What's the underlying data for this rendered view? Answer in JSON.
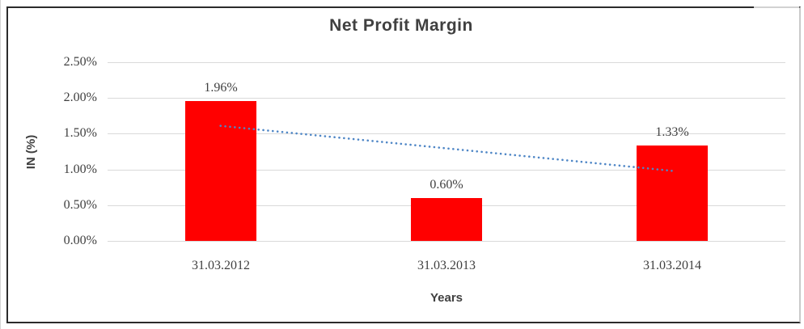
{
  "window": {
    "background": "#ffffff",
    "frame_border_color": "#2b2b2b"
  },
  "chart_data": {
    "type": "bar",
    "title": "Net Profit Margin",
    "xlabel": "Years",
    "ylabel": "IN (%)",
    "categories": [
      "31.03.2012",
      "31.03.2013",
      "31.03.2014"
    ],
    "values": [
      1.96,
      0.6,
      1.33
    ],
    "data_labels": [
      "1.96%",
      "0.60%",
      "1.33%"
    ],
    "ylim": [
      0,
      2.5
    ],
    "ytick_values": [
      0.0,
      0.5,
      1.0,
      1.5,
      2.0,
      2.5
    ],
    "ytick_labels": [
      "0.00%",
      "0.50%",
      "1.00%",
      "1.50%",
      "2.00%",
      "2.50%"
    ],
    "grid": "horizontal",
    "gridline_color": "#d9d9d9",
    "legend": "none",
    "bar_color": "#ff0000",
    "text_color": "#3f3f3f",
    "trendline": {
      "type": "linear",
      "style": "dotted",
      "color": "#4e86c6",
      "start_value": 1.61,
      "end_value": 0.98
    }
  }
}
